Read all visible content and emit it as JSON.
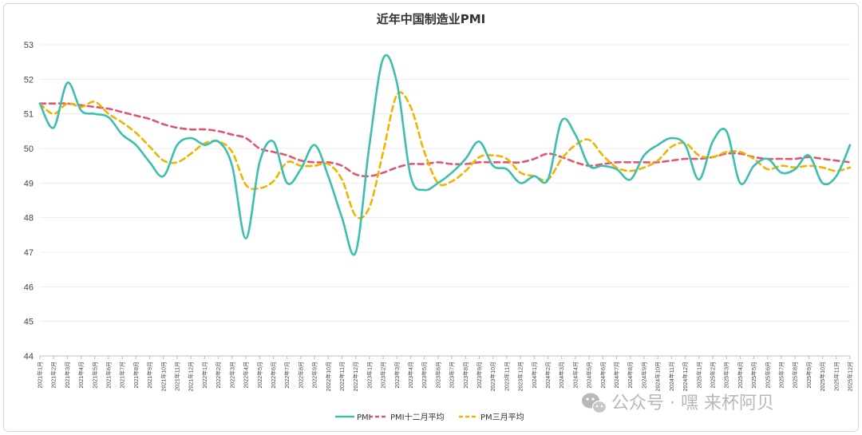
{
  "chart_data": {
    "type": "line",
    "title": "近年中国制造业PMI",
    "xlabel": "",
    "ylabel": "",
    "ylim": [
      44,
      53
    ],
    "yticks": [
      44,
      45,
      46,
      47,
      48,
      49,
      50,
      51,
      52,
      53
    ],
    "grid": true,
    "legend_position": "bottom-center",
    "categories": [
      "2021年1月",
      "2021年2月",
      "2021年3月",
      "2021年4月",
      "2021年5月",
      "2021年6月",
      "2021年7月",
      "2021年8月",
      "2021年9月",
      "2021年10月",
      "2021年11月",
      "2021年12月",
      "2022年1月",
      "2022年2月",
      "2022年3月",
      "2022年4月",
      "2022年5月",
      "2022年6月",
      "2022年7月",
      "2022年8月",
      "2022年9月",
      "2022年10月",
      "2022年11月",
      "2022年12月",
      "2023年1月",
      "2023年2月",
      "2023年3月",
      "2023年4月",
      "2023年5月",
      "2023年6月",
      "2023年7月",
      "2023年8月",
      "2023年9月",
      "2023年10月",
      "2023年11月",
      "2023年12月",
      "2024年1月",
      "2024年2月",
      "2024年3月",
      "2024年4月",
      "2024年5月",
      "2024年6月",
      "2024年7月",
      "2024年8月",
      "2024年9月",
      "2024年10月",
      "2024年11月",
      "2024年12月",
      "2025年1月",
      "2025年2月",
      "2025年3月",
      "2025年4月",
      "2025年5月",
      "2025年6月",
      "2025年7月",
      "2025年8月",
      "2025年9月",
      "2025年10月",
      "2025年11月",
      "2025年12月"
    ],
    "series": [
      {
        "name": "PMI",
        "color": "#3cbfae",
        "dash": "solid",
        "values": [
          51.3,
          50.6,
          51.9,
          51.1,
          51.0,
          50.9,
          50.4,
          50.1,
          49.6,
          49.2,
          50.1,
          50.3,
          50.1,
          50.2,
          49.5,
          47.4,
          49.6,
          50.2,
          49.0,
          49.4,
          50.1,
          49.2,
          48.0,
          47.0,
          50.1,
          52.6,
          51.9,
          49.2,
          48.8,
          49.0,
          49.3,
          49.7,
          50.2,
          49.5,
          49.4,
          49.0,
          49.2,
          49.1,
          50.8,
          50.4,
          49.5,
          49.5,
          49.4,
          49.1,
          49.8,
          50.1,
          50.3,
          50.1,
          49.1,
          50.2,
          50.5,
          49.0,
          49.5,
          49.7,
          49.3,
          49.4,
          49.8,
          49.0,
          49.2,
          50.1
        ]
      },
      {
        "name": "PMI十二月平均",
        "color": "#e0566e",
        "dash": "dashed",
        "values": [
          51.3,
          51.3,
          51.3,
          51.25,
          51.2,
          51.15,
          51.05,
          50.95,
          50.85,
          50.7,
          50.6,
          50.55,
          50.55,
          50.5,
          50.4,
          50.3,
          50.0,
          49.9,
          49.8,
          49.65,
          49.6,
          49.6,
          49.5,
          49.25,
          49.2,
          49.3,
          49.45,
          49.55,
          49.55,
          49.6,
          49.55,
          49.55,
          49.6,
          49.6,
          49.6,
          49.6,
          49.7,
          49.85,
          49.75,
          49.6,
          49.5,
          49.55,
          49.6,
          49.6,
          49.6,
          49.6,
          49.65,
          49.7,
          49.7,
          49.75,
          49.85,
          49.85,
          49.75,
          49.7,
          49.7,
          49.7,
          49.75,
          49.7,
          49.65,
          49.6
        ]
      },
      {
        "name": "PM三月平均",
        "color": "#f0b400",
        "dash": "dashed",
        "values": [
          51.3,
          51.0,
          51.3,
          51.2,
          51.35,
          51.0,
          50.75,
          50.45,
          50.05,
          49.65,
          49.6,
          49.85,
          50.15,
          50.2,
          49.9,
          48.95,
          48.85,
          49.05,
          49.6,
          49.5,
          49.5,
          49.55,
          49.1,
          48.05,
          48.3,
          49.9,
          51.55,
          51.2,
          49.9,
          49.0,
          49.05,
          49.35,
          49.75,
          49.8,
          49.7,
          49.3,
          49.2,
          49.1,
          49.7,
          50.1,
          50.25,
          49.8,
          49.45,
          49.35,
          49.45,
          49.65,
          50.05,
          50.15,
          49.8,
          49.75,
          49.9,
          49.9,
          49.7,
          49.4,
          49.5,
          49.45,
          49.5,
          49.45,
          49.35,
          49.45
        ]
      }
    ]
  },
  "watermark": {
    "icon": "wechat-icon",
    "text": "公众号 · 嘿 来杯阿贝"
  }
}
